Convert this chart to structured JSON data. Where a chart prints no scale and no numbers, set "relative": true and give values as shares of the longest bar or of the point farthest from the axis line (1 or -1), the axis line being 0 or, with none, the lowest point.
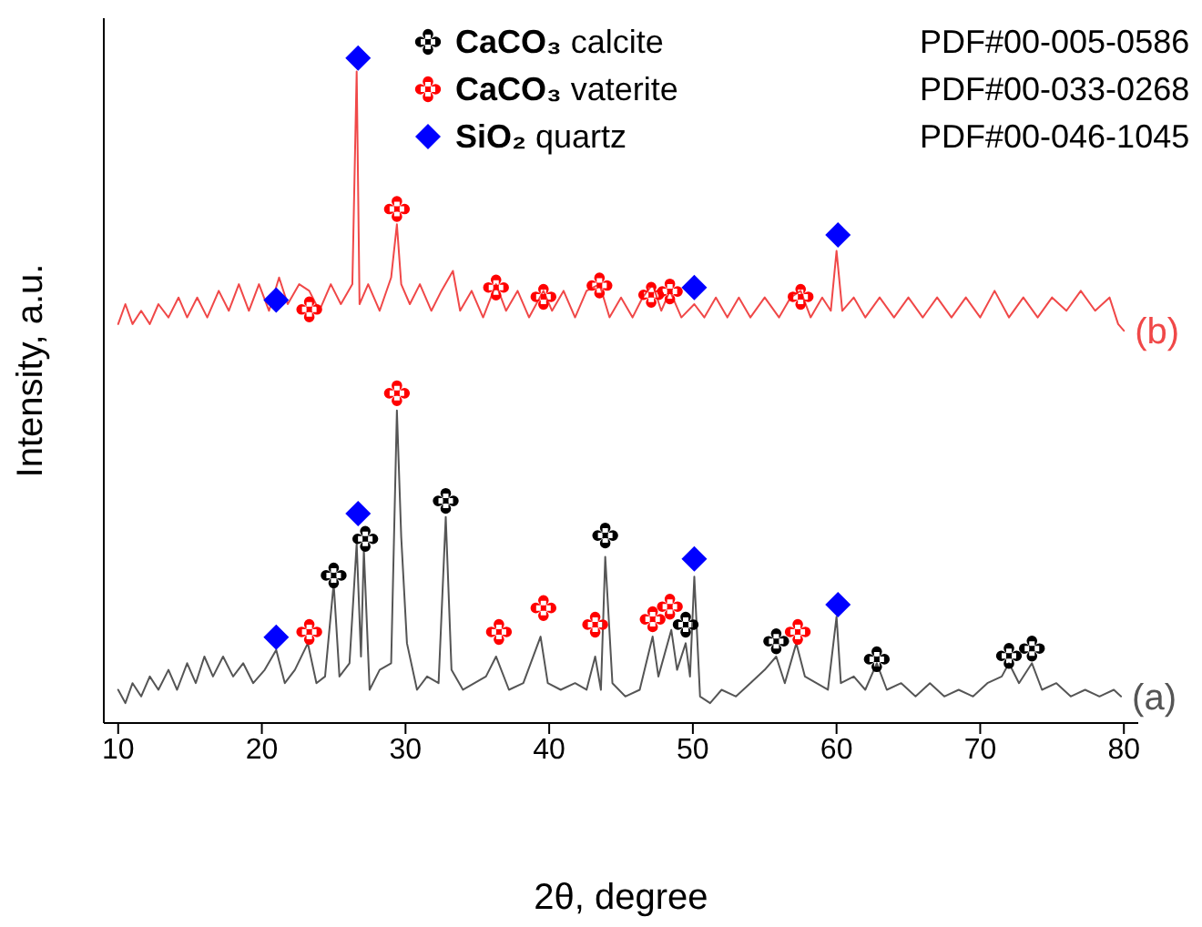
{
  "chart_data": {
    "type": "line",
    "relative": true,
    "xlabel": "2θ, degree",
    "ylabel": "Intensity, a.u.",
    "xlim": [
      9,
      81
    ],
    "xticks": [
      10,
      20,
      30,
      40,
      50,
      60,
      70,
      80
    ],
    "legend": "top",
    "grid": false,
    "annotations": [
      "PDF#00-005-0586",
      "PDF#00-033-0268",
      "PDF#00-046-1045"
    ],
    "series": [
      {
        "name": "(a)",
        "color": "#555555",
        "x": [
          10,
          10.5,
          11,
          11.6,
          12.2,
          12.8,
          13.5,
          14.1,
          14.8,
          15.4,
          16,
          16.6,
          17.3,
          18,
          18.7,
          19.4,
          20.2,
          21,
          21.6,
          22.3,
          23.2,
          23.8,
          24.4,
          25,
          25.4,
          26.1,
          26.6,
          26.9,
          27.1,
          27.5,
          28.2,
          29,
          29.4,
          29.7,
          30.1,
          30.8,
          31.5,
          32.3,
          32.8,
          33.2,
          34,
          34.8,
          35.6,
          36.3,
          37.2,
          38.2,
          39.4,
          39.9,
          40.8,
          41.8,
          42.6,
          43.2,
          43.6,
          43.9,
          44.4,
          45.3,
          46.3,
          47.2,
          47.6,
          48.5,
          48.9,
          49.5,
          49.8,
          50.1,
          50.5,
          51.2,
          52,
          53,
          54,
          55,
          55.8,
          56.4,
          57.2,
          57.8,
          58.6,
          59.4,
          60,
          60.3,
          61.2,
          62,
          62.8,
          63.5,
          64.5,
          65.5,
          66.5,
          67.5,
          68.5,
          69.5,
          70.5,
          71.5,
          72,
          72.7,
          73.6,
          74.3,
          75.3,
          76.3,
          77.3,
          78.3,
          79.3,
          79.8
        ],
        "values": [
          0.05,
          0.03,
          0.06,
          0.04,
          0.07,
          0.05,
          0.08,
          0.05,
          0.09,
          0.06,
          0.1,
          0.07,
          0.1,
          0.07,
          0.09,
          0.06,
          0.08,
          0.11,
          0.06,
          0.08,
          0.12,
          0.06,
          0.07,
          0.21,
          0.07,
          0.09,
          0.27,
          0.1,
          0.26,
          0.05,
          0.08,
          0.09,
          0.47,
          0.28,
          0.12,
          0.05,
          0.07,
          0.06,
          0.31,
          0.08,
          0.05,
          0.06,
          0.07,
          0.1,
          0.05,
          0.06,
          0.13,
          0.06,
          0.05,
          0.06,
          0.05,
          0.1,
          0.05,
          0.25,
          0.06,
          0.04,
          0.05,
          0.13,
          0.07,
          0.14,
          0.08,
          0.12,
          0.07,
          0.22,
          0.04,
          0.03,
          0.05,
          0.04,
          0.06,
          0.08,
          0.1,
          0.06,
          0.12,
          0.07,
          0.06,
          0.05,
          0.16,
          0.06,
          0.07,
          0.05,
          0.09,
          0.05,
          0.06,
          0.04,
          0.06,
          0.04,
          0.05,
          0.04,
          0.06,
          0.07,
          0.09,
          0.06,
          0.09,
          0.05,
          0.06,
          0.04,
          0.05,
          0.04,
          0.05,
          0.04
        ]
      },
      {
        "name": "(b)",
        "color": "#f04848",
        "x": [
          10,
          10.5,
          11,
          11.6,
          12.2,
          12.8,
          13.5,
          14.2,
          14.8,
          15.5,
          16.2,
          17,
          17.7,
          18.4,
          19.1,
          19.8,
          20.5,
          21.2,
          21.8,
          22.6,
          23.3,
          24,
          24.8,
          25.5,
          26.3,
          26.6,
          26.8,
          27.4,
          28.2,
          29,
          29.4,
          29.7,
          30.3,
          31,
          31.8,
          32.5,
          33.3,
          33.8,
          34.6,
          35.4,
          36.3,
          37,
          37.8,
          38.6,
          39.6,
          40.2,
          41,
          41.8,
          42.6,
          43.5,
          44.2,
          45,
          45.8,
          46.5,
          47.2,
          47.8,
          48.4,
          49.2,
          50.1,
          50.8,
          51.6,
          52.4,
          53.2,
          54,
          55,
          56,
          56.8,
          57.5,
          58.2,
          59,
          59.6,
          60,
          60.4,
          61.2,
          62,
          63,
          64,
          65,
          66,
          67,
          68,
          69,
          70,
          71,
          72,
          73,
          74,
          75,
          76,
          77,
          78,
          79,
          79.6,
          80
        ],
        "values": [
          0.6,
          0.63,
          0.6,
          0.62,
          0.6,
          0.63,
          0.61,
          0.64,
          0.61,
          0.64,
          0.61,
          0.65,
          0.62,
          0.66,
          0.62,
          0.66,
          0.62,
          0.67,
          0.63,
          0.66,
          0.65,
          0.62,
          0.66,
          0.63,
          0.66,
          0.98,
          0.63,
          0.66,
          0.62,
          0.67,
          0.75,
          0.66,
          0.63,
          0.66,
          0.62,
          0.65,
          0.68,
          0.62,
          0.65,
          0.61,
          0.66,
          0.62,
          0.65,
          0.61,
          0.65,
          0.62,
          0.65,
          0.61,
          0.65,
          0.66,
          0.61,
          0.64,
          0.61,
          0.64,
          0.66,
          0.62,
          0.65,
          0.61,
          0.63,
          0.61,
          0.64,
          0.61,
          0.64,
          0.61,
          0.64,
          0.61,
          0.64,
          0.65,
          0.61,
          0.64,
          0.62,
          0.71,
          0.62,
          0.64,
          0.61,
          0.64,
          0.61,
          0.64,
          0.61,
          0.64,
          0.61,
          0.64,
          0.61,
          0.65,
          0.61,
          0.64,
          0.61,
          0.64,
          0.62,
          0.65,
          0.62,
          0.64,
          0.6,
          0.59
        ]
      },
      {
        "name": "CaCO₃ calcite",
        "type": "scatter",
        "marker": "cross",
        "color": "#000000",
        "x": [
          25,
          27.2,
          32.8,
          43.9,
          49.5,
          55.8,
          62.8,
          72,
          73.6
        ],
        "values": [
          0.222,
          0.277,
          0.334,
          0.282,
          0.148,
          0.123,
          0.096,
          0.101,
          0.112
        ]
      },
      {
        "name": "CaCO₃ vaterite",
        "type": "scatter",
        "marker": "cross",
        "color": "#ff0000",
        "x": [
          23.3,
          29.4,
          36.5,
          39.6,
          43.2,
          47.2,
          48.4,
          57.3,
          23.3,
          29.4,
          36.3,
          39.6,
          43.5,
          47.1,
          48.4,
          57.5
        ],
        "values": [
          0.137,
          0.496,
          0.137,
          0.173,
          0.148,
          0.156,
          0.175,
          0.137,
          0.622,
          0.773,
          0.655,
          0.641,
          0.658,
          0.644,
          0.649,
          0.641
        ]
      },
      {
        "name": "SiO₂ quartz",
        "type": "scatter",
        "marker": "diamond",
        "color": "#0000ff",
        "x": [
          21,
          26.7,
          50.1,
          60.1,
          21,
          26.7,
          50.1,
          60.1
        ],
        "values": [
          0.129,
          0.315,
          0.247,
          0.178,
          0.636,
          1,
          0.655,
          0.734
        ]
      }
    ]
  }
}
